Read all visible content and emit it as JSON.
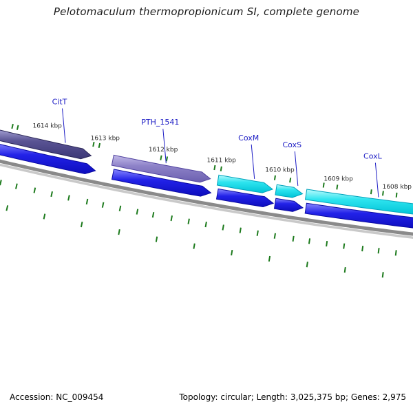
{
  "title": "Pelotomaculum thermopropionicum SI, complete genome",
  "footer": {
    "accession": "Accession: NC_009454",
    "topology": "Topology: circular; Length: 3,025,375 bp; Genes: 2,975"
  },
  "colors": {
    "gene_label": "#1b1bc4",
    "axis_label": "#2a2a2a",
    "tick_green": "#1c7a1c",
    "backbone_dark": "#8a8a8a",
    "backbone_light": "#c9c9c9",
    "title_text": "#1a1a1a",
    "footer_text": "#000000"
  },
  "gene_colors": {
    "slate": {
      "top": "#a8a4d6",
      "mid": "#5a5494",
      "bottom": "#3c3776",
      "border": "#2c2858"
    },
    "purple": {
      "top": "#c3bbe8",
      "mid": "#8d82c8",
      "bottom": "#6c60b0",
      "border": "#5244a0"
    },
    "blue": {
      "top": "#8888ff",
      "mid": "#2222e8",
      "bottom": "#0d0dbd",
      "border": "#0909a0"
    },
    "cyan": {
      "top": "#bdfbfd",
      "mid": "#2ee4ef",
      "bottom": "#00c3d6",
      "border": "#00a2bb"
    }
  },
  "chart_data": {
    "type": "circular-genome-arc",
    "visible_range_kbp": [
      1607.6,
      1614.7
    ],
    "axis_unit": "kbp",
    "axis_ticks": [
      {
        "kbp": 1614,
        "label": "1614 kbp"
      },
      {
        "kbp": 1613,
        "label": "1613 kbp"
      },
      {
        "kbp": 1612,
        "label": "1612 kbp"
      },
      {
        "kbp": 1611,
        "label": "1611 kbp"
      },
      {
        "kbp": 1610,
        "label": "1610 kbp"
      },
      {
        "kbp": 1609,
        "label": "1609 kbp"
      },
      {
        "kbp": 1608,
        "label": "1608 kbp"
      }
    ],
    "genes_outer": [
      {
        "name": "CitT",
        "start_kbp": 1614.85,
        "end_kbp": 1613.17,
        "direction": "right",
        "color": "slate",
        "label_anchor_kbp": 1613.64
      },
      {
        "name": "PTH_1541",
        "start_kbp": 1612.8,
        "end_kbp": 1611.13,
        "direction": "right",
        "color": "purple",
        "label_anchor_kbp": 1611.91
      },
      {
        "name": "CoxM",
        "start_kbp": 1611.0,
        "end_kbp": 1610.07,
        "direction": "right",
        "color": "cyan",
        "label_anchor_kbp": 1610.4
      },
      {
        "name": "CoxS",
        "start_kbp": 1610.01,
        "end_kbp": 1609.56,
        "direction": "right",
        "color": "cyan",
        "label_anchor_kbp": 1609.66
      },
      {
        "name": "CoxL",
        "start_kbp": 1609.5,
        "end_kbp": 1607.4,
        "direction": "right",
        "color": "cyan",
        "label_anchor_kbp": 1608.29
      }
    ],
    "genes_inner": [
      {
        "name": "cds-1",
        "start_kbp": 1614.85,
        "end_kbp": 1613.05,
        "direction": "right",
        "color": "blue"
      },
      {
        "name": "cds-2",
        "start_kbp": 1612.75,
        "end_kbp": 1611.08,
        "direction": "right",
        "color": "blue"
      },
      {
        "name": "cds-3",
        "start_kbp": 1610.97,
        "end_kbp": 1610.02,
        "direction": "right",
        "color": "blue"
      },
      {
        "name": "cds-4",
        "start_kbp": 1609.99,
        "end_kbp": 1609.52,
        "direction": "right",
        "color": "blue"
      },
      {
        "name": "cds-5",
        "start_kbp": 1609.47,
        "end_kbp": 1607.4,
        "direction": "right",
        "color": "blue"
      }
    ],
    "outer_ticks_kbp": [
      1614.57,
      1614.48,
      1613.17,
      1613.07,
      1612.01,
      1611.91,
      1611.09,
      1610.98,
      1610.06,
      1609.8,
      1609.23,
      1609.0,
      1608.42,
      1608.22,
      1607.99
    ],
    "inner_ticks_row1_kbp": [
      1614.55,
      1614.28,
      1613.97,
      1613.68,
      1613.39,
      1613.08,
      1612.81,
      1612.52,
      1612.23,
      1611.96,
      1611.65,
      1611.36,
      1611.07,
      1610.78,
      1610.49,
      1610.2,
      1609.91,
      1609.6,
      1609.33,
      1609.04,
      1608.75,
      1608.44,
      1608.17,
      1607.88
    ],
    "inner_ticks_row2_kbp": [
      1614.35,
      1613.72,
      1613.09,
      1612.46,
      1611.83,
      1611.2,
      1610.57,
      1609.94,
      1609.31,
      1608.68,
      1608.05
    ]
  }
}
